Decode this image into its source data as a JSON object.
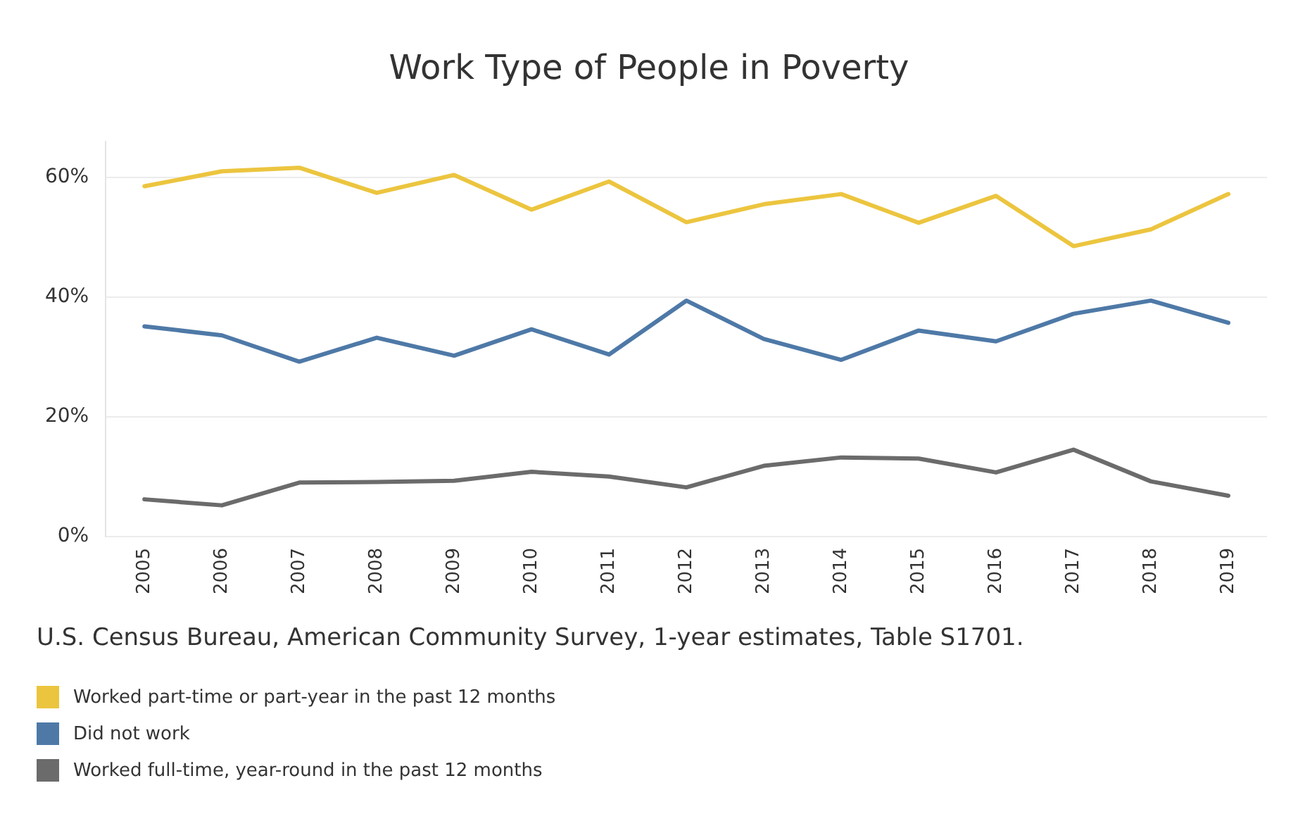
{
  "chart_data": {
    "type": "line",
    "title": "Work Type of People in Poverty",
    "categories": [
      "2005",
      "2006",
      "2007",
      "2008",
      "2009",
      "2010",
      "2011",
      "2012",
      "2013",
      "2014",
      "2015",
      "2016",
      "2017",
      "2018",
      "2019"
    ],
    "series": [
      {
        "name": "Worked part-time or part-year in the past 12 months",
        "color": "#ecc53f",
        "values": [
          58.5,
          61.0,
          61.6,
          57.4,
          60.4,
          54.6,
          59.3,
          52.5,
          55.5,
          57.2,
          52.4,
          56.9,
          48.5,
          51.3,
          57.2
        ]
      },
      {
        "name": "Did not work",
        "color": "#4e79a7",
        "values": [
          35.1,
          33.6,
          29.2,
          33.2,
          30.2,
          34.6,
          30.4,
          39.4,
          33.0,
          29.5,
          34.4,
          32.6,
          37.2,
          39.4,
          35.7
        ]
      },
      {
        "name": "Worked full-time, year-round in the past 12 months",
        "color": "#6b6b6b",
        "values": [
          6.2,
          5.2,
          9.0,
          9.1,
          9.3,
          10.8,
          10.0,
          8.2,
          11.8,
          13.2,
          13.0,
          10.7,
          14.5,
          9.2,
          6.8
        ]
      }
    ],
    "ylim": [
      0,
      66
    ],
    "yticks": [
      {
        "value": 0,
        "label": "0%"
      },
      {
        "value": 20,
        "label": "20%"
      },
      {
        "value": 40,
        "label": "40%"
      },
      {
        "value": 60,
        "label": "60%"
      }
    ],
    "grid": "y",
    "legend": "bottom",
    "marker": "none",
    "line_style": "solid",
    "annotations": [
      "U.S. Census Bureau, American Community Survey, 1-year estimates, Table S1701."
    ]
  }
}
